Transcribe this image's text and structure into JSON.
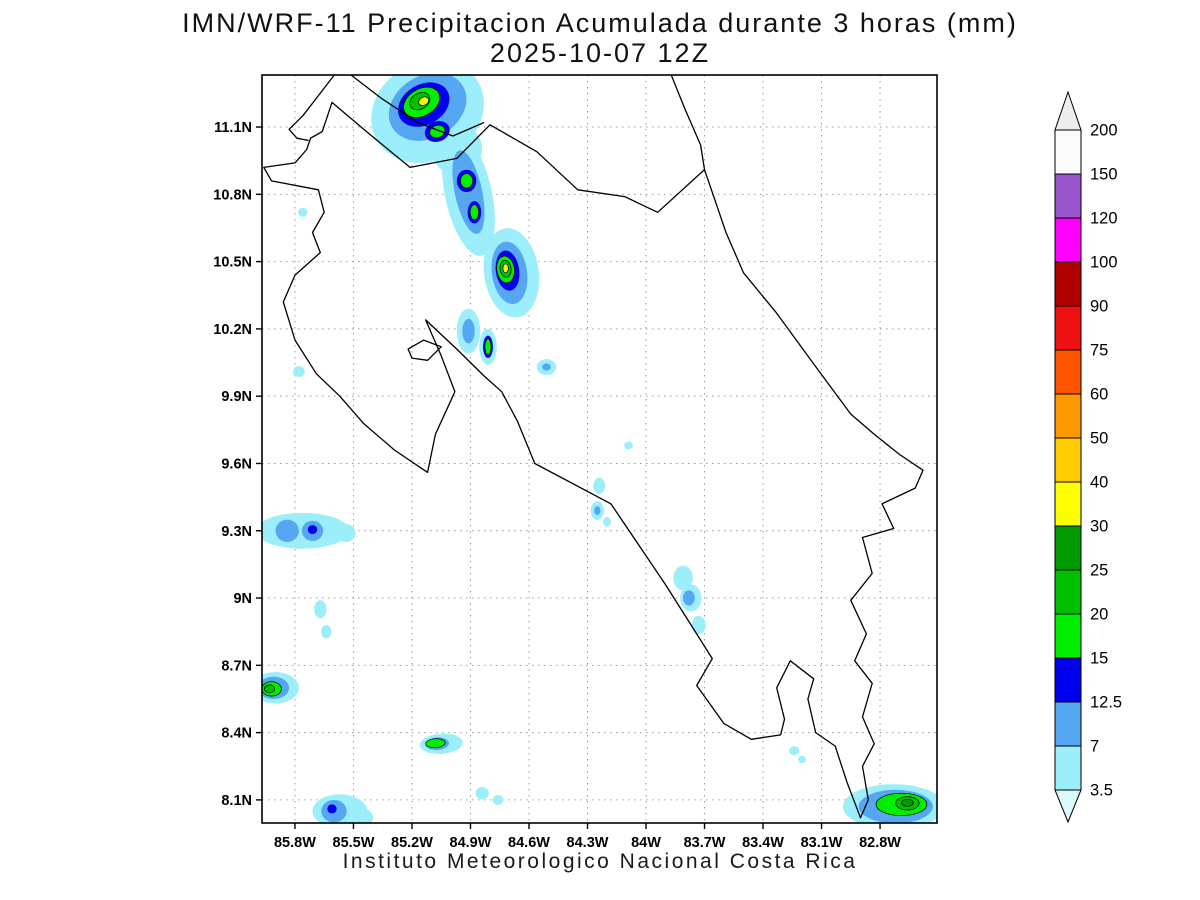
{
  "chart_data": {
    "type": "heatmap",
    "style": "filled-contour-precipitation-map",
    "title": "IMN/WRF-11 Precipitacion Acumulada durante 3 horas (mm)",
    "subtitle": "2025-10-07 12Z",
    "footer": "Instituto Meteorologico Nacional Costa Rica",
    "units": "mm",
    "grid": true,
    "lon_range": [
      -85.969,
      -82.508
    ],
    "lat_range": [
      7.997,
      11.332
    ],
    "x_ticks": [
      {
        "lon": -85.8,
        "label": "85.8W"
      },
      {
        "lon": -85.5,
        "label": "85.5W"
      },
      {
        "lon": -85.2,
        "label": "85.2W"
      },
      {
        "lon": -84.9,
        "label": "84.9W"
      },
      {
        "lon": -84.6,
        "label": "84.6W"
      },
      {
        "lon": -84.3,
        "label": "84.3W"
      },
      {
        "lon": -84.0,
        "label": "84W"
      },
      {
        "lon": -83.7,
        "label": "83.7W"
      },
      {
        "lon": -83.4,
        "label": "83.4W"
      },
      {
        "lon": -83.1,
        "label": "83.1W"
      },
      {
        "lon": -82.8,
        "label": "82.8W"
      }
    ],
    "y_ticks": [
      {
        "lat": 11.1,
        "label": "11.1N"
      },
      {
        "lat": 10.8,
        "label": "10.8N"
      },
      {
        "lat": 10.5,
        "label": "10.5N"
      },
      {
        "lat": 10.2,
        "label": "10.2N"
      },
      {
        "lat": 9.9,
        "label": "9.9N"
      },
      {
        "lat": 9.6,
        "label": "9.6N"
      },
      {
        "lat": 9.3,
        "label": "9.3N"
      },
      {
        "lat": 9.0,
        "label": "9N"
      },
      {
        "lat": 8.7,
        "label": "8.7N"
      },
      {
        "lat": 8.4,
        "label": "8.4N"
      },
      {
        "lat": 8.1,
        "label": "8.1N"
      }
    ],
    "colorbar": {
      "position": "right",
      "below_color": "#d9f9fd",
      "above_color": "#ededed",
      "segments": [
        {
          "level": 3.5,
          "color": "#9ceefa"
        },
        {
          "level": 7,
          "color": "#55a7f2"
        },
        {
          "level": 12.5,
          "color": "#0000ee"
        },
        {
          "level": 15,
          "color": "#00ee00"
        },
        {
          "level": 20,
          "color": "#00c000"
        },
        {
          "level": 25,
          "color": "#009900"
        },
        {
          "level": 30,
          "color": "#ffff00"
        },
        {
          "level": 40,
          "color": "#ffcc00"
        },
        {
          "level": 50,
          "color": "#ff9900"
        },
        {
          "level": 60,
          "color": "#ff5500"
        },
        {
          "level": 75,
          "color": "#ee1111"
        },
        {
          "level": 90,
          "color": "#b00000"
        },
        {
          "level": 100,
          "color": "#ff00ff"
        },
        {
          "level": 120,
          "color": "#9955cc"
        },
        {
          "level": 150,
          "color": "#fbfbfb"
        }
      ],
      "tick_labels": [
        "3.5",
        "7",
        "12.5",
        "15",
        "20",
        "25",
        "30",
        "40",
        "50",
        "60",
        "75",
        "90",
        "100",
        "120",
        "150",
        "200"
      ]
    },
    "cells_format": [
      "level_mm",
      "lon",
      "lat",
      "rx_deg",
      "ry_deg",
      "rotation_deg"
    ],
    "cells": [
      [
        3.5,
        -85.12,
        11.17,
        0.3,
        0.22,
        -30
      ],
      [
        3.5,
        -84.97,
        11.0,
        0.13,
        0.11,
        -30
      ],
      [
        3.5,
        -84.91,
        10.8,
        0.12,
        0.28,
        -12
      ],
      [
        3.5,
        -84.69,
        10.45,
        0.14,
        0.2,
        -8
      ],
      [
        3.5,
        -84.91,
        10.19,
        0.06,
        0.1,
        0
      ],
      [
        3.5,
        -84.81,
        10.12,
        0.045,
        0.08,
        0
      ],
      [
        3.5,
        -84.51,
        10.03,
        0.05,
        0.035,
        0
      ],
      [
        3.5,
        -85.76,
        10.72,
        0.024,
        0.02,
        0
      ],
      [
        3.5,
        -85.78,
        10.01,
        0.03,
        0.024,
        0
      ],
      [
        3.5,
        -84.09,
        9.68,
        0.022,
        0.018,
        0
      ],
      [
        3.5,
        -85.76,
        9.3,
        0.24,
        0.08,
        0
      ],
      [
        3.5,
        -85.54,
        9.29,
        0.05,
        0.04,
        0
      ],
      [
        3.5,
        -85.67,
        8.95,
        0.032,
        0.04,
        0
      ],
      [
        3.5,
        -85.64,
        8.85,
        0.026,
        0.03,
        0
      ],
      [
        3.5,
        -85.9,
        8.6,
        0.12,
        0.07,
        0
      ],
      [
        3.5,
        -85.05,
        8.35,
        0.11,
        0.045,
        -4
      ],
      [
        3.5,
        -84.84,
        8.13,
        0.034,
        0.027,
        0
      ],
      [
        3.5,
        -84.76,
        8.1,
        0.027,
        0.022,
        0
      ],
      [
        3.5,
        -85.57,
        8.05,
        0.14,
        0.075,
        0
      ],
      [
        3.5,
        -85.45,
        8.02,
        0.05,
        0.04,
        0
      ],
      [
        3.5,
        -82.73,
        8.07,
        0.26,
        0.1,
        0
      ],
      [
        3.5,
        -84.24,
        9.5,
        0.03,
        0.036,
        0
      ],
      [
        3.5,
        -84.25,
        9.39,
        0.034,
        0.042,
        0
      ],
      [
        3.5,
        -84.2,
        9.34,
        0.02,
        0.022,
        0
      ],
      [
        3.5,
        -83.81,
        9.09,
        0.05,
        0.055,
        0
      ],
      [
        3.5,
        -83.77,
        9.0,
        0.055,
        0.06,
        0
      ],
      [
        3.5,
        -83.73,
        8.88,
        0.036,
        0.04,
        0
      ],
      [
        3.5,
        -83.24,
        8.32,
        0.026,
        0.02,
        0
      ],
      [
        3.5,
        -83.2,
        8.28,
        0.02,
        0.017,
        0
      ],
      [
        7,
        -85.12,
        11.19,
        0.21,
        0.14,
        -30
      ],
      [
        7,
        -84.91,
        10.81,
        0.07,
        0.19,
        -12
      ],
      [
        7,
        -84.7,
        10.45,
        0.09,
        0.14,
        -8
      ],
      [
        7,
        -84.91,
        10.19,
        0.032,
        0.055,
        0
      ],
      [
        7,
        -84.51,
        10.03,
        0.022,
        0.016,
        0
      ],
      [
        7,
        -85.84,
        9.3,
        0.06,
        0.05,
        0
      ],
      [
        7,
        -85.71,
        9.3,
        0.055,
        0.045,
        0
      ],
      [
        7,
        -85.91,
        8.6,
        0.08,
        0.05,
        0
      ],
      [
        7,
        -85.07,
        8.35,
        0.06,
        0.028,
        -4
      ],
      [
        7,
        -85.6,
        8.05,
        0.065,
        0.05,
        0
      ],
      [
        7,
        -82.72,
        8.07,
        0.19,
        0.075,
        0
      ],
      [
        7,
        -84.25,
        9.39,
        0.016,
        0.02,
        0
      ],
      [
        7,
        -83.78,
        9.0,
        0.03,
        0.034,
        0
      ],
      [
        12.5,
        -85.14,
        11.2,
        0.14,
        0.09,
        -30
      ],
      [
        12.5,
        -85.07,
        11.08,
        0.065,
        0.045,
        -20
      ],
      [
        12.5,
        -84.92,
        10.86,
        0.05,
        0.05,
        0
      ],
      [
        12.5,
        -84.88,
        10.72,
        0.035,
        0.05,
        0
      ],
      [
        12.5,
        -84.71,
        10.46,
        0.06,
        0.09,
        -8
      ],
      [
        12.5,
        -84.81,
        10.12,
        0.025,
        0.05,
        0
      ],
      [
        12.5,
        -85.71,
        9.305,
        0.024,
        0.02,
        0
      ],
      [
        12.5,
        -85.61,
        8.06,
        0.024,
        0.02,
        0
      ],
      [
        15,
        -85.15,
        11.21,
        0.1,
        0.06,
        -30
      ],
      [
        15,
        -85.07,
        11.08,
        0.04,
        0.027,
        -20
      ],
      [
        15,
        -84.92,
        10.86,
        0.032,
        0.032,
        0
      ],
      [
        15,
        -84.88,
        10.72,
        0.022,
        0.034,
        0
      ],
      [
        15,
        -84.72,
        10.465,
        0.045,
        0.06,
        -8
      ],
      [
        15,
        -84.81,
        10.12,
        0.016,
        0.035,
        0
      ],
      [
        15,
        -85.92,
        8.595,
        0.05,
        0.032,
        0
      ],
      [
        15,
        -85.08,
        8.353,
        0.05,
        0.02,
        -4
      ],
      [
        15,
        -82.69,
        8.08,
        0.13,
        0.05,
        0
      ],
      [
        20,
        -85.16,
        11.215,
        0.055,
        0.035,
        -30
      ],
      [
        20,
        -84.72,
        10.468,
        0.028,
        0.038,
        -8
      ],
      [
        20,
        -85.93,
        8.595,
        0.026,
        0.018,
        0
      ],
      [
        20,
        -82.66,
        8.085,
        0.06,
        0.03,
        0
      ],
      [
        25,
        -82.66,
        8.087,
        0.03,
        0.016,
        0
      ],
      [
        30,
        -85.14,
        11.215,
        0.027,
        0.018,
        -30
      ],
      [
        30,
        -84.72,
        10.47,
        0.014,
        0.02,
        0
      ]
    ],
    "coastline_paths": [
      {
        "name": "costa-rica-outline",
        "closed": true,
        "points": [
          [
            -85.72,
            11.05
          ],
          [
            -85.66,
            11.08
          ],
          [
            -85.61,
            11.21
          ],
          [
            -85.42,
            11.07
          ],
          [
            -85.21,
            10.92
          ],
          [
            -84.97,
            10.96
          ],
          [
            -84.8,
            11.11
          ],
          [
            -84.56,
            10.99
          ],
          [
            -84.35,
            10.82
          ],
          [
            -84.11,
            10.79
          ],
          [
            -83.94,
            10.72
          ],
          [
            -83.7,
            10.91
          ],
          [
            -83.59,
            10.63
          ],
          [
            -83.5,
            10.45
          ],
          [
            -83.33,
            10.27
          ],
          [
            -83.12,
            10.02
          ],
          [
            -82.95,
            9.82
          ],
          [
            -82.83,
            9.73
          ],
          [
            -82.7,
            9.64
          ],
          [
            -82.58,
            9.57
          ],
          [
            -82.62,
            9.49
          ],
          [
            -82.79,
            9.42
          ],
          [
            -82.73,
            9.31
          ],
          [
            -82.89,
            9.27
          ],
          [
            -82.84,
            9.11
          ],
          [
            -82.95,
            8.99
          ],
          [
            -82.87,
            8.84
          ],
          [
            -82.93,
            8.72
          ],
          [
            -82.84,
            8.62
          ],
          [
            -82.89,
            8.47
          ],
          [
            -82.83,
            8.35
          ],
          [
            -82.89,
            8.25
          ],
          [
            -82.86,
            8.1
          ],
          [
            -82.9,
            8.02
          ],
          [
            -82.97,
            8.18
          ],
          [
            -83.03,
            8.34
          ],
          [
            -83.13,
            8.4
          ],
          [
            -83.17,
            8.55
          ],
          [
            -83.14,
            8.64
          ],
          [
            -83.26,
            8.72
          ],
          [
            -83.33,
            8.6
          ],
          [
            -83.29,
            8.46
          ],
          [
            -83.31,
            8.39
          ],
          [
            -83.46,
            8.37
          ],
          [
            -83.6,
            8.44
          ],
          [
            -83.74,
            8.61
          ],
          [
            -83.66,
            8.73
          ],
          [
            -83.9,
            9.06
          ],
          [
            -84.18,
            9.42
          ],
          [
            -84.57,
            9.6
          ],
          [
            -84.66,
            9.79
          ],
          [
            -84.74,
            9.92
          ],
          [
            -84.83,
            9.99
          ],
          [
            -84.97,
            10.11
          ],
          [
            -85.13,
            10.24
          ],
          [
            -85.05,
            10.08
          ],
          [
            -84.98,
            9.92
          ],
          [
            -85.08,
            9.73
          ],
          [
            -85.12,
            9.56
          ],
          [
            -85.29,
            9.66
          ],
          [
            -85.45,
            9.78
          ],
          [
            -85.57,
            9.9
          ],
          [
            -85.69,
            10.0
          ],
          [
            -85.8,
            10.15
          ],
          [
            -85.86,
            10.32
          ],
          [
            -85.8,
            10.44
          ],
          [
            -85.67,
            10.54
          ],
          [
            -85.71,
            10.63
          ],
          [
            -85.65,
            10.72
          ],
          [
            -85.68,
            10.82
          ],
          [
            -85.92,
            10.86
          ],
          [
            -85.96,
            10.92
          ],
          [
            -85.8,
            10.94
          ],
          [
            -85.74,
            11.0
          ]
        ]
      },
      {
        "name": "nicaragua-pacific-coast",
        "closed": false,
        "points": [
          [
            -85.6,
            11.33
          ],
          [
            -85.68,
            11.24
          ],
          [
            -85.76,
            11.15
          ],
          [
            -85.83,
            11.09
          ],
          [
            -85.79,
            11.05
          ],
          [
            -85.73,
            11.04
          ]
        ]
      },
      {
        "name": "lake-nicaragua-shore",
        "closed": false,
        "points": [
          [
            -85.51,
            11.33
          ],
          [
            -85.36,
            11.23
          ],
          [
            -85.17,
            11.12
          ],
          [
            -84.99,
            11.06
          ],
          [
            -84.83,
            11.12
          ]
        ]
      },
      {
        "name": "nicaragua-caribbean-coast",
        "closed": false,
        "points": [
          [
            -83.87,
            11.33
          ],
          [
            -83.8,
            11.18
          ],
          [
            -83.72,
            11.02
          ],
          [
            -83.7,
            10.91
          ]
        ]
      },
      {
        "name": "chira-island",
        "closed": true,
        "points": [
          [
            -85.22,
            10.11
          ],
          [
            -85.14,
            10.15
          ],
          [
            -85.05,
            10.12
          ],
          [
            -85.12,
            10.06
          ],
          [
            -85.2,
            10.07
          ]
        ]
      }
    ]
  }
}
